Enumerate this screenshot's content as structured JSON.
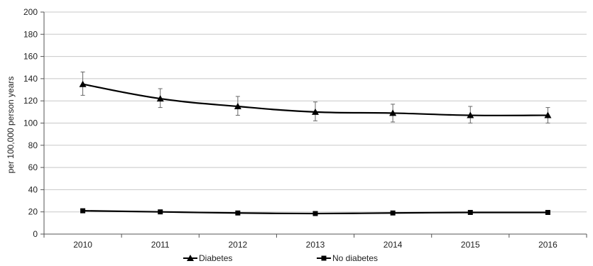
{
  "chart_data": {
    "type": "line",
    "categories": [
      "2010",
      "2011",
      "2012",
      "2013",
      "2014",
      "2015",
      "2016"
    ],
    "ylabel": "per 100,000 person years",
    "ylim": [
      0,
      200
    ],
    "yticks": [
      "0",
      "20",
      "40",
      "60",
      "80",
      "100",
      "120",
      "140",
      "160",
      "180",
      "200"
    ],
    "grid": "horizontal",
    "legend_position": "bottom",
    "series": [
      {
        "name": "Diabetes",
        "marker": "triangle",
        "color": "#000000",
        "values": [
          135,
          122,
          115,
          110,
          109,
          107,
          107
        ],
        "error_low": [
          125,
          114,
          107,
          102,
          101,
          100,
          100
        ],
        "error_high": [
          146,
          131,
          124,
          119,
          117,
          115,
          114
        ]
      },
      {
        "name": "No diabetes",
        "marker": "square",
        "color": "#000000",
        "values": [
          21,
          20,
          19,
          18.5,
          19,
          19.5,
          19.5
        ]
      }
    ]
  }
}
